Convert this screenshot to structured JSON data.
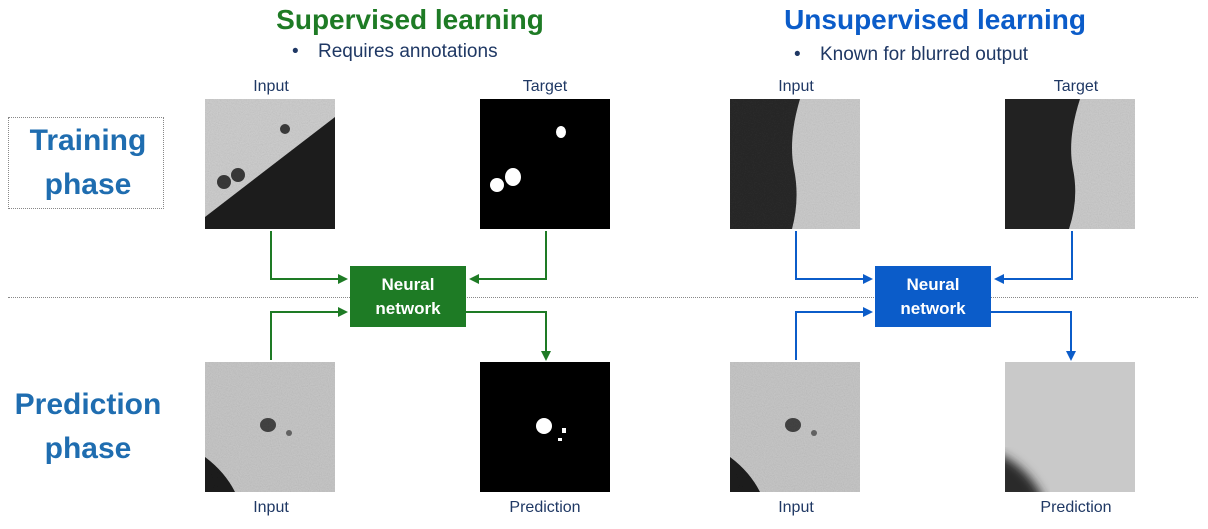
{
  "colors": {
    "supervised": "#1e7b25",
    "unsupervised": "#0b5cc9",
    "phase": "#1f6db0",
    "text": "#1f3864"
  },
  "supervised": {
    "title": "Supervised learning",
    "bullet": "Requires annotations",
    "train_input": "Input",
    "train_target": "Target",
    "pred_input": "Input",
    "pred_output": "Prediction",
    "network_line1": "Neural",
    "network_line2": "network"
  },
  "unsupervised": {
    "title": "Unsupervised learning",
    "bullet": "Known for blurred output",
    "train_input": "Input",
    "train_target": "Target",
    "pred_input": "Input",
    "pred_output": "Prediction",
    "network_line1": "Neural",
    "network_line2": "network"
  },
  "phases": {
    "training_line1": "Training",
    "training_line2": "phase",
    "prediction_line1": "Prediction",
    "prediction_line2": "phase"
  },
  "bullet_symbol": "•"
}
